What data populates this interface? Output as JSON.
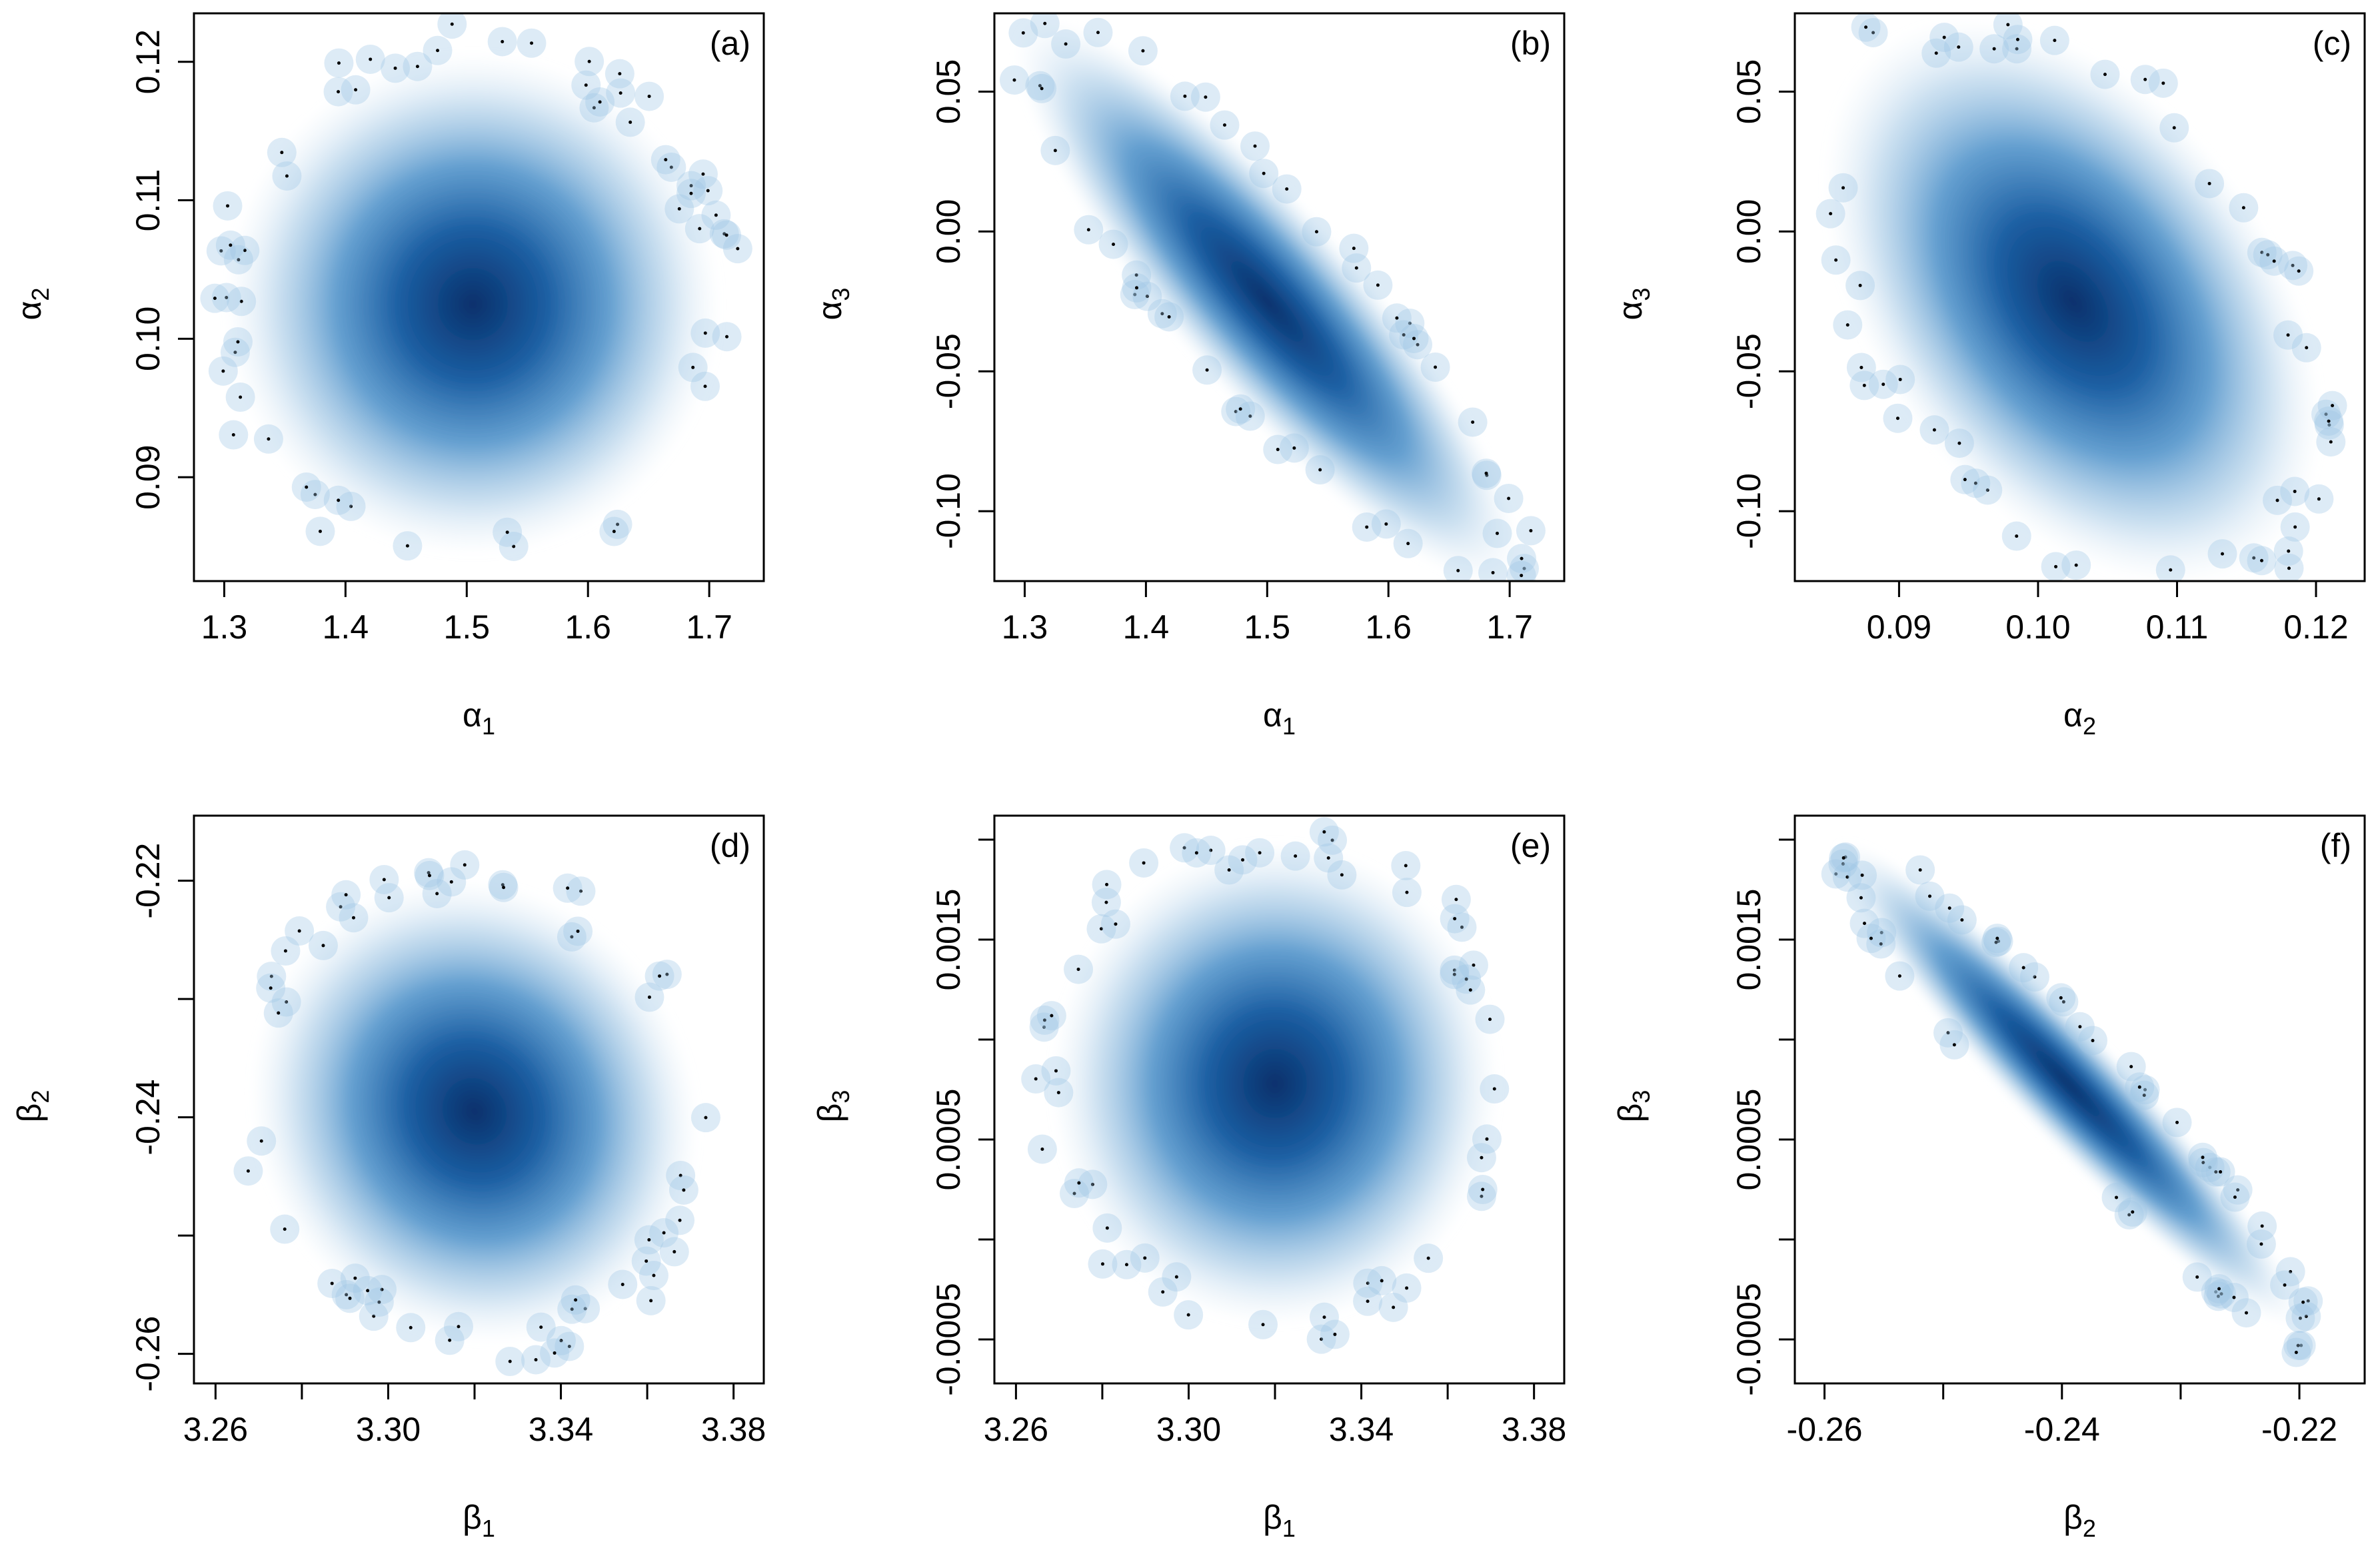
{
  "colors": {
    "density_dark": "#08306b",
    "density_mid": "#2171b5",
    "density_light": "#c6dbef",
    "background": "#ffffff",
    "axis": "#000000"
  },
  "chart_data": [
    {
      "type": "scatter",
      "panel_label": "(a)",
      "xlabel": "α1",
      "ylabel": "α2",
      "xlim": [
        1.275,
        1.745
      ],
      "ylim": [
        0.0825,
        0.1235
      ],
      "xticks": [
        1.3,
        1.4,
        1.5,
        1.6,
        1.7
      ],
      "xtick_labels": [
        "1.3",
        "1.4",
        "1.5",
        "1.6",
        "1.7"
      ],
      "yticks": [
        0.09,
        0.1,
        0.11,
        0.12
      ],
      "ytick_labels": [
        "0.09",
        "0.10",
        "0.11",
        "0.12"
      ],
      "grid": false,
      "density": {
        "mean": [
          1.505,
          0.1025
        ],
        "sd": [
          0.072,
          0.0062
        ],
        "corr": 0.0
      }
    },
    {
      "type": "scatter",
      "panel_label": "(b)",
      "xlabel": "α1",
      "ylabel": "α3",
      "xlim": [
        1.275,
        1.745
      ],
      "ylim": [
        -0.125,
        0.078
      ],
      "xticks": [
        1.3,
        1.4,
        1.5,
        1.6,
        1.7
      ],
      "xtick_labels": [
        "1.3",
        "1.4",
        "1.5",
        "1.6",
        "1.7"
      ],
      "yticks": [
        -0.1,
        -0.05,
        0.0,
        0.05
      ],
      "ytick_labels": [
        "-0.10",
        "-0.05",
        "0.00",
        "0.05"
      ],
      "grid": false,
      "density": {
        "mean": [
          1.5,
          -0.025
        ],
        "sd": [
          0.072,
          0.035
        ],
        "corr": -0.88
      }
    },
    {
      "type": "scatter",
      "panel_label": "(c)",
      "xlabel": "α2",
      "ylabel": "α3",
      "xlim": [
        0.0825,
        0.1235
      ],
      "ylim": [
        -0.125,
        0.078
      ],
      "xticks": [
        0.09,
        0.1,
        0.11,
        0.12
      ],
      "xtick_labels": [
        "0.09",
        "0.10",
        "0.11",
        "0.12"
      ],
      "yticks": [
        -0.1,
        -0.05,
        0.0,
        0.05
      ],
      "ytick_labels": [
        "-0.10",
        "-0.05",
        "0.00",
        "0.05"
      ],
      "grid": false,
      "density": {
        "mean": [
          0.1025,
          -0.025
        ],
        "sd": [
          0.0062,
          0.035
        ],
        "corr": -0.42
      }
    },
    {
      "type": "scatter",
      "panel_label": "(d)",
      "xlabel": "β1",
      "ylabel": "β2",
      "xlim": [
        3.255,
        3.387
      ],
      "ylim": [
        -0.2625,
        -0.2145
      ],
      "xticks": [
        3.26,
        3.28,
        3.3,
        3.32,
        3.34,
        3.36,
        3.38
      ],
      "xtick_labels": [
        "3.26",
        "",
        "3.30",
        "",
        "3.34",
        "",
        "3.38"
      ],
      "yticks": [
        -0.26,
        -0.25,
        -0.24,
        -0.23,
        -0.22
      ],
      "ytick_labels": [
        "-0.26",
        "",
        "-0.24",
        "",
        "-0.22"
      ],
      "grid": false,
      "density": {
        "mean": [
          3.32,
          -0.2395
        ],
        "sd": [
          0.018,
          0.0068
        ],
        "corr": -0.08
      }
    },
    {
      "type": "scatter",
      "panel_label": "(e)",
      "xlabel": "β1",
      "ylabel": "β3",
      "xlim": [
        3.255,
        3.387
      ],
      "ylim": [
        -0.00072,
        0.00212
      ],
      "xticks": [
        3.26,
        3.28,
        3.3,
        3.32,
        3.34,
        3.36,
        3.38
      ],
      "xtick_labels": [
        "3.26",
        "",
        "3.30",
        "",
        "3.34",
        "",
        "3.38"
      ],
      "yticks": [
        -0.0005,
        0.0,
        0.0005,
        0.001,
        0.0015,
        0.002
      ],
      "ytick_labels": [
        "-0.0005",
        "",
        "0.0005",
        "",
        "0.0015",
        ""
      ],
      "grid": false,
      "density": {
        "mean": [
          3.32,
          0.00078
        ],
        "sd": [
          0.018,
          0.00042
        ],
        "corr": 0.0
      }
    },
    {
      "type": "scatter",
      "panel_label": "(f)",
      "xlabel": "β2",
      "ylabel": "β3",
      "xlim": [
        -0.2625,
        -0.2145
      ],
      "ylim": [
        -0.00072,
        0.00212
      ],
      "xticks": [
        -0.26,
        -0.25,
        -0.24,
        -0.23,
        -0.22
      ],
      "xtick_labels": [
        "-0.26",
        "",
        "-0.24",
        "",
        "-0.22"
      ],
      "yticks": [
        -0.0005,
        0.0,
        0.0005,
        0.001,
        0.0015,
        0.002
      ],
      "ytick_labels": [
        "-0.0005",
        "",
        "0.0005",
        "",
        "0.0015",
        ""
      ],
      "grid": false,
      "density": {
        "mean": [
          -0.2395,
          0.00078
        ],
        "sd": [
          0.0068,
          0.00042
        ],
        "corr": -0.95
      }
    }
  ]
}
